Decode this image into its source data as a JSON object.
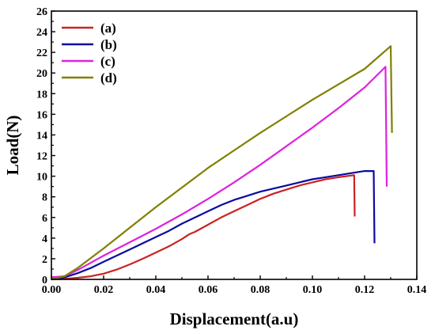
{
  "chart_data": {
    "type": "line",
    "title": "",
    "xlabel": "Displacement(a.u)",
    "ylabel": "Load(N)",
    "xlim": [
      0.0,
      0.14
    ],
    "ylim": [
      0,
      26
    ],
    "x_ticks": [
      "0.00",
      "0.02",
      "0.04",
      "0.06",
      "0.08",
      "0.10",
      "0.12",
      "0.14"
    ],
    "y_ticks": [
      "0",
      "2",
      "4",
      "6",
      "8",
      "10",
      "12",
      "14",
      "16",
      "18",
      "20",
      "22",
      "24",
      "26"
    ],
    "legend_position": "top-left",
    "grid": false,
    "series": [
      {
        "name": "(a)",
        "color": "#cc2222",
        "points": [
          [
            0.0,
            0.0
          ],
          [
            0.005,
            0.05
          ],
          [
            0.01,
            0.15
          ],
          [
            0.015,
            0.3
          ],
          [
            0.02,
            0.55
          ],
          [
            0.025,
            0.95
          ],
          [
            0.03,
            1.45
          ],
          [
            0.035,
            2.0
          ],
          [
            0.04,
            2.6
          ],
          [
            0.045,
            3.2
          ],
          [
            0.05,
            3.9
          ],
          [
            0.053,
            4.4
          ],
          [
            0.055,
            4.6
          ],
          [
            0.06,
            5.3
          ],
          [
            0.065,
            6.0
          ],
          [
            0.07,
            6.6
          ],
          [
            0.075,
            7.2
          ],
          [
            0.08,
            7.8
          ],
          [
            0.085,
            8.3
          ],
          [
            0.09,
            8.7
          ],
          [
            0.095,
            9.1
          ],
          [
            0.1,
            9.4
          ],
          [
            0.105,
            9.7
          ],
          [
            0.11,
            9.9
          ],
          [
            0.116,
            10.1
          ],
          [
            0.1162,
            6.1
          ]
        ]
      },
      {
        "name": "(b)",
        "color": "#0a0aa0",
        "points": [
          [
            0.0,
            0.0
          ],
          [
            0.005,
            0.2
          ],
          [
            0.01,
            0.6
          ],
          [
            0.015,
            1.1
          ],
          [
            0.02,
            1.7
          ],
          [
            0.025,
            2.3
          ],
          [
            0.03,
            2.9
          ],
          [
            0.035,
            3.5
          ],
          [
            0.04,
            4.1
          ],
          [
            0.045,
            4.7
          ],
          [
            0.05,
            5.4
          ],
          [
            0.055,
            6.0
          ],
          [
            0.06,
            6.6
          ],
          [
            0.065,
            7.2
          ],
          [
            0.07,
            7.7
          ],
          [
            0.075,
            8.1
          ],
          [
            0.08,
            8.5
          ],
          [
            0.085,
            8.8
          ],
          [
            0.09,
            9.1
          ],
          [
            0.095,
            9.4
          ],
          [
            0.1,
            9.7
          ],
          [
            0.105,
            9.9
          ],
          [
            0.11,
            10.1
          ],
          [
            0.115,
            10.3
          ],
          [
            0.12,
            10.5
          ],
          [
            0.1235,
            10.5
          ],
          [
            0.1238,
            3.5
          ]
        ]
      },
      {
        "name": "(c)",
        "color": "#dd22dd",
        "points": [
          [
            0.0,
            0.2
          ],
          [
            0.005,
            0.3
          ],
          [
            0.01,
            0.9
          ],
          [
            0.02,
            2.3
          ],
          [
            0.03,
            3.6
          ],
          [
            0.04,
            4.9
          ],
          [
            0.05,
            6.3
          ],
          [
            0.06,
            7.8
          ],
          [
            0.07,
            9.4
          ],
          [
            0.08,
            11.1
          ],
          [
            0.09,
            12.9
          ],
          [
            0.1,
            14.7
          ],
          [
            0.11,
            16.6
          ],
          [
            0.12,
            18.6
          ],
          [
            0.128,
            20.6
          ],
          [
            0.1285,
            9.0
          ]
        ]
      },
      {
        "name": "(d)",
        "color": "#808000",
        "points": [
          [
            0.0,
            0.0
          ],
          [
            0.005,
            0.3
          ],
          [
            0.01,
            1.1
          ],
          [
            0.02,
            3.0
          ],
          [
            0.03,
            5.0
          ],
          [
            0.04,
            7.0
          ],
          [
            0.05,
            8.9
          ],
          [
            0.06,
            10.8
          ],
          [
            0.07,
            12.5
          ],
          [
            0.08,
            14.2
          ],
          [
            0.09,
            15.8
          ],
          [
            0.1,
            17.4
          ],
          [
            0.11,
            18.9
          ],
          [
            0.12,
            20.4
          ],
          [
            0.13,
            22.6
          ],
          [
            0.1305,
            14.2
          ]
        ]
      }
    ]
  }
}
